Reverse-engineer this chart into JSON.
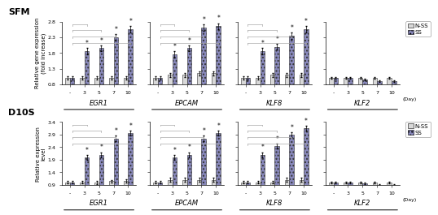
{
  "rows": [
    {
      "label": "SFM",
      "ylabel": "Relative gene expression\n(fold increase)",
      "ylim": [
        0.8,
        2.8
      ],
      "yticks": [
        0.8,
        1.3,
        1.8,
        2.3,
        2.8
      ],
      "genes": [
        "EGR1",
        "EPCAM",
        "KLF8",
        "KLF2"
      ],
      "xticklabels": [
        "-",
        "3",
        "5",
        "7",
        "10"
      ],
      "nss_values": [
        [
          1.0,
          1.0,
          1.0,
          1.0,
          1.0
        ],
        [
          1.0,
          1.1,
          1.1,
          1.15,
          1.15
        ],
        [
          1.0,
          1.0,
          1.1,
          1.1,
          1.1
        ],
        [
          1.0,
          1.0,
          1.0,
          1.0,
          1.0
        ]
      ],
      "ss_values": [
        [
          1.0,
          1.85,
          1.95,
          2.3,
          2.55
        ],
        [
          1.0,
          1.75,
          1.95,
          2.6,
          2.65
        ],
        [
          1.0,
          1.85,
          2.0,
          2.35,
          2.55
        ],
        [
          1.0,
          1.0,
          0.95,
          0.9,
          0.9
        ]
      ],
      "nss_errors": [
        [
          0.05,
          0.05,
          0.05,
          0.05,
          0.05
        ],
        [
          0.05,
          0.07,
          0.07,
          0.07,
          0.07
        ],
        [
          0.05,
          0.05,
          0.07,
          0.07,
          0.07
        ],
        [
          0.03,
          0.03,
          0.03,
          0.03,
          0.03
        ]
      ],
      "ss_errors": [
        [
          0.05,
          0.1,
          0.1,
          0.1,
          0.1
        ],
        [
          0.05,
          0.1,
          0.1,
          0.1,
          0.1
        ],
        [
          0.05,
          0.1,
          0.1,
          0.1,
          0.1
        ],
        [
          0.03,
          0.03,
          0.03,
          0.03,
          0.03
        ]
      ],
      "sig_ss": [
        [
          false,
          true,
          true,
          true,
          true
        ],
        [
          false,
          true,
          true,
          true,
          true
        ],
        [
          false,
          true,
          true,
          true,
          true
        ],
        [
          false,
          false,
          false,
          false,
          false
        ]
      ]
    },
    {
      "label": "D10S",
      "ylabel": "Relative expression\nlevel",
      "ylim": [
        0.9,
        3.4
      ],
      "yticks": [
        0.9,
        1.4,
        1.9,
        2.4,
        2.9,
        3.4
      ],
      "genes": [
        "EGR1",
        "EPCAM",
        "KLF8",
        "KLF2"
      ],
      "xticklabels": [
        "-",
        "3",
        "5",
        "7",
        "10"
      ],
      "nss_values": [
        [
          1.0,
          1.0,
          1.0,
          1.05,
          1.05
        ],
        [
          1.0,
          1.1,
          1.1,
          1.1,
          1.1
        ],
        [
          1.0,
          1.0,
          1.0,
          1.1,
          1.1
        ],
        [
          1.0,
          1.0,
          1.0,
          1.0,
          1.0
        ]
      ],
      "ss_values": [
        [
          1.0,
          2.0,
          2.1,
          2.75,
          2.95
        ],
        [
          1.0,
          2.0,
          2.1,
          2.75,
          2.95
        ],
        [
          1.0,
          2.1,
          2.45,
          2.9,
          3.15
        ],
        [
          1.0,
          1.0,
          0.95,
          0.9,
          0.9
        ]
      ],
      "nss_errors": [
        [
          0.05,
          0.05,
          0.07,
          0.05,
          0.07
        ],
        [
          0.05,
          0.07,
          0.07,
          0.07,
          0.07
        ],
        [
          0.05,
          0.05,
          0.05,
          0.07,
          0.07
        ],
        [
          0.03,
          0.03,
          0.03,
          0.03,
          0.03
        ]
      ],
      "ss_errors": [
        [
          0.05,
          0.1,
          0.1,
          0.1,
          0.1
        ],
        [
          0.05,
          0.1,
          0.1,
          0.1,
          0.1
        ],
        [
          0.05,
          0.1,
          0.1,
          0.1,
          0.1
        ],
        [
          0.03,
          0.03,
          0.03,
          0.03,
          0.03
        ]
      ],
      "sig_ss": [
        [
          false,
          true,
          true,
          true,
          true
        ],
        [
          false,
          true,
          true,
          true,
          true
        ],
        [
          false,
          true,
          true,
          true,
          true
        ],
        [
          false,
          false,
          false,
          false,
          false
        ]
      ]
    }
  ],
  "bar_width": 0.32,
  "nss_color": "#d8d8d8",
  "ss_color": "#8888bb",
  "nss_edge": "#333333",
  "ss_edge": "#333333",
  "legend_labels": [
    "N-SS",
    "SS"
  ],
  "bracket_color": "#aaaaaa",
  "font_size_label": 5.0,
  "font_size_tick": 4.5,
  "font_size_title": 8.0,
  "font_size_gene": 6.0,
  "font_size_legend": 5.0,
  "font_size_asterisk": 5.5
}
